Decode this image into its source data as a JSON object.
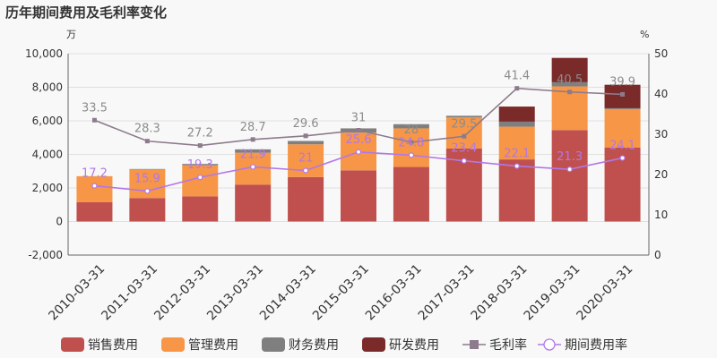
{
  "chart_data": {
    "type": "bar",
    "title": "历年期间费用及毛利率变化",
    "y_left_unit": "万",
    "y_right_unit": "%",
    "categories": [
      "2010-03-31",
      "2011-03-31",
      "2012-03-31",
      "2013-03-31",
      "2014-03-31",
      "2015-03-31",
      "2016-03-31",
      "2017-03-31",
      "2018-03-31",
      "2019-03-31",
      "2020-03-31"
    ],
    "ylim_left": [
      -2000,
      10000
    ],
    "yticks_left": [
      "-2,000",
      "0",
      "2,000",
      "4,000",
      "6,000",
      "8,000",
      "10,000"
    ],
    "ylim_right": [
      0,
      50
    ],
    "yticks_right": [
      "0",
      "10",
      "20",
      "30",
      "40",
      "50"
    ],
    "stacked_series": [
      {
        "name": "销售费用",
        "color": "#c0504d",
        "values": [
          1150,
          1400,
          1500,
          2200,
          2650,
          3050,
          3250,
          4350,
          3700,
          5450,
          4400
        ]
      },
      {
        "name": "管理费用",
        "color": "#f79646",
        "values": [
          1550,
          1700,
          1850,
          1900,
          1950,
          2250,
          2300,
          1850,
          1950,
          2600,
          2300
        ]
      },
      {
        "name": "财务费用",
        "color": "#7f7f7f",
        "values": [
          0,
          30,
          80,
          200,
          200,
          250,
          250,
          100,
          300,
          250,
          50
        ]
      },
      {
        "name": "研发费用",
        "color": "#7b2a2a",
        "values": [
          0,
          0,
          0,
          0,
          0,
          0,
          0,
          0,
          900,
          1450,
          1400
        ]
      }
    ],
    "line_series": [
      {
        "name": "毛利率",
        "color": "#8c7b8c",
        "marker": "square",
        "values": [
          33.5,
          28.3,
          27.2,
          28.7,
          29.6,
          31,
          28,
          29.5,
          41.4,
          40.5,
          39.9
        ],
        "labels": [
          "33.5",
          "28.3",
          "27.2",
          "28.7",
          "29.6",
          "31",
          "28",
          "29.5",
          "41.4",
          "40.5",
          "39.9"
        ]
      },
      {
        "name": "期间费用率",
        "color": "#b277e8",
        "marker": "circle",
        "values": [
          17.2,
          15.9,
          19.3,
          21.9,
          21,
          25.6,
          24.8,
          23.4,
          22.1,
          21.3,
          24.1
        ],
        "labels": [
          "17.2",
          "15.9",
          "19.3",
          "21.9",
          "21",
          "25.6",
          "24.8",
          "23.4",
          "22.1",
          "21.3",
          "24.1"
        ]
      }
    ],
    "grid": true,
    "legend_position": "bottom"
  }
}
